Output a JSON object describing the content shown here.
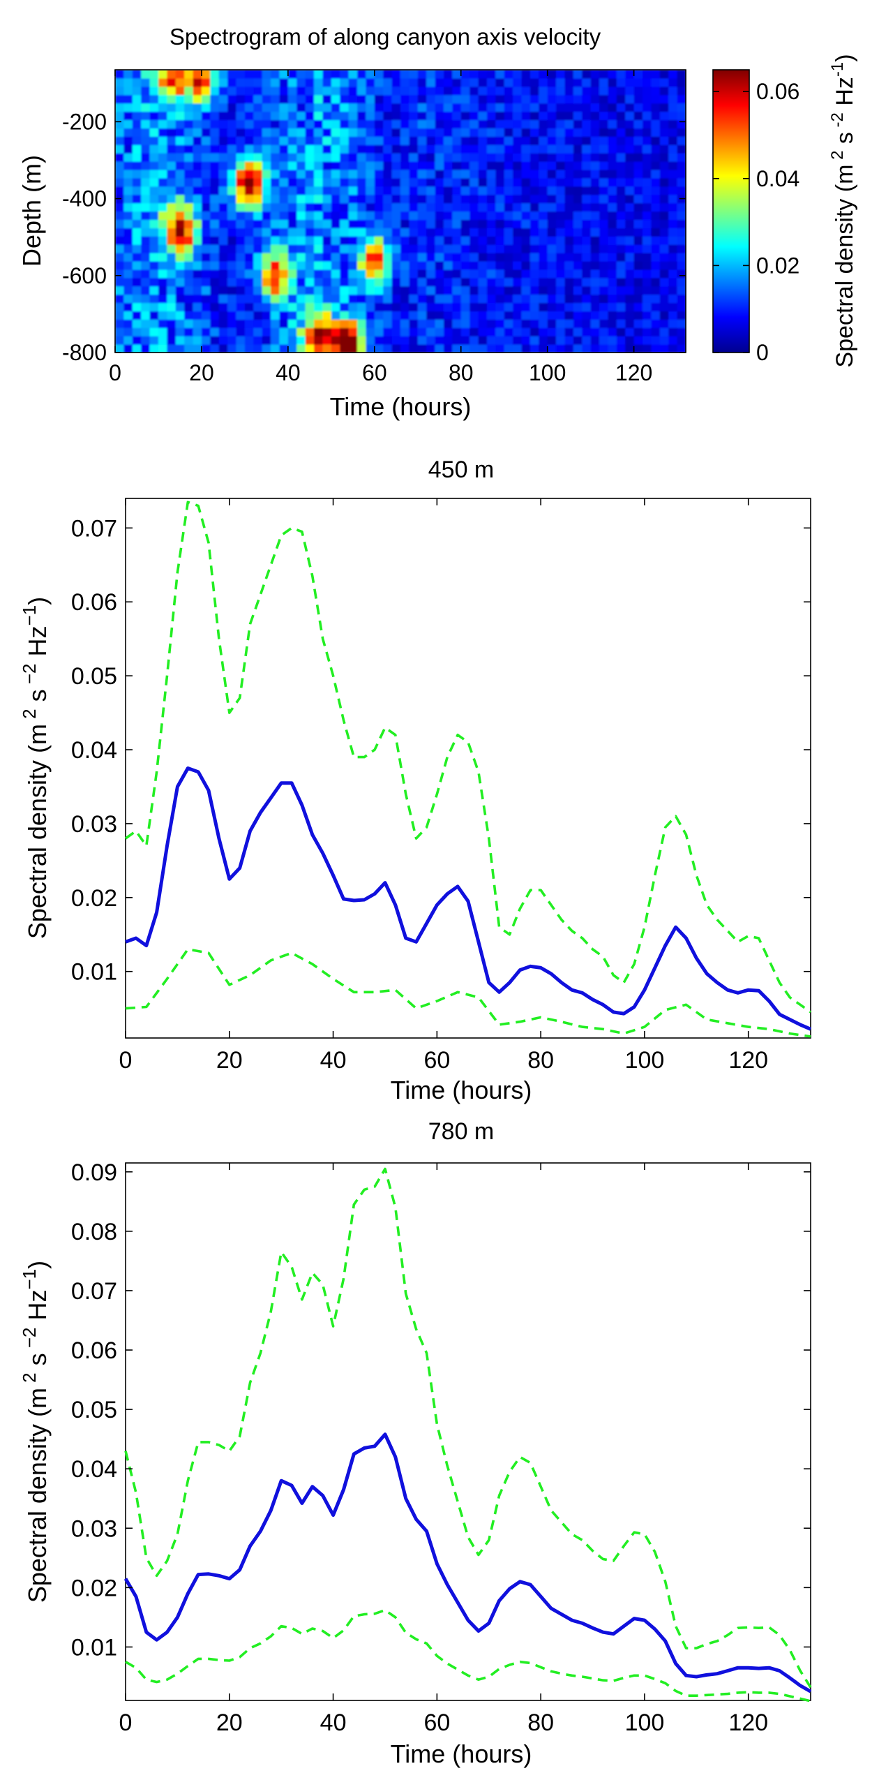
{
  "chart_data": [
    {
      "type": "heatmap",
      "title": "Spectrogram of along canyon axis velocity",
      "xlabel": "Time (hours)",
      "ylabel": "Depth (m)",
      "xlim": [
        0,
        132
      ],
      "ylim": [
        -800,
        -65
      ],
      "xticks": [
        "0",
        "20",
        "40",
        "60",
        "80",
        "100",
        "120"
      ],
      "yticks": [
        "-200",
        "-400",
        "-600",
        "-800"
      ],
      "colorbar": {
        "label": "Spectral density (m 2 s -2 Hz-1)",
        "range": [
          0,
          0.065
        ],
        "ticks": [
          "0",
          "0.02",
          "0.04",
          "0.06"
        ],
        "colormap": "jet"
      },
      "hotspots": [
        {
          "time": 15,
          "depth": -480,
          "value": 0.055
        },
        {
          "time": 31,
          "depth": -360,
          "value": 0.06
        },
        {
          "time": 37,
          "depth": -600,
          "value": 0.045
        },
        {
          "time": 54,
          "depth": -780,
          "value": 0.065
        },
        {
          "time": 47,
          "depth": -760,
          "value": 0.05
        },
        {
          "time": 60,
          "depth": -560,
          "value": 0.045
        },
        {
          "time": 20,
          "depth": -90,
          "value": 0.045
        },
        {
          "time": 13,
          "depth": -90,
          "value": 0.04
        }
      ]
    },
    {
      "type": "line",
      "title": "450 m",
      "xlabel": "Time (hours)",
      "ylabel": "Spectral density (m 2 s -2 Hz-1)",
      "xlim": [
        0,
        132
      ],
      "ylim": [
        0.001,
        0.074
      ],
      "xticks": [
        "0",
        "20",
        "40",
        "60",
        "80",
        "100",
        "120"
      ],
      "yticks": [
        "0.01",
        "0.02",
        "0.03",
        "0.04",
        "0.05",
        "0.06",
        "0.07"
      ],
      "series": [
        {
          "style": "solid",
          "color": "#1010dd",
          "x": [
            0,
            2,
            4,
            6,
            8,
            10,
            12,
            14,
            16,
            18,
            20,
            22,
            24,
            26,
            28,
            30,
            32,
            34,
            36,
            38,
            40,
            42,
            44,
            46,
            48,
            50,
            52,
            54,
            56,
            58,
            60,
            62,
            64,
            66,
            68,
            70,
            72,
            74,
            76,
            78,
            80,
            82,
            84,
            86,
            88,
            90,
            92,
            94,
            96,
            98,
            100,
            102,
            104,
            106,
            108,
            110,
            112,
            114,
            116,
            118,
            120,
            122,
            124,
            126,
            128,
            130,
            132
          ],
          "y": [
            0.014,
            0.0145,
            0.0135,
            0.018,
            0.027,
            0.035,
            0.0375,
            0.037,
            0.0345,
            0.028,
            0.0225,
            0.024,
            0.029,
            0.0315,
            0.0335,
            0.0355,
            0.0355,
            0.0325,
            0.0285,
            0.026,
            0.023,
            0.0198,
            0.0196,
            0.0197,
            0.0205,
            0.022,
            0.019,
            0.0145,
            0.014,
            0.0165,
            0.019,
            0.0205,
            0.0215,
            0.0195,
            0.014,
            0.0085,
            0.0072,
            0.0085,
            0.0102,
            0.0107,
            0.0105,
            0.0097,
            0.0085,
            0.0075,
            0.0071,
            0.0062,
            0.0055,
            0.0045,
            0.0043,
            0.0052,
            0.0075,
            0.0105,
            0.0135,
            0.016,
            0.0145,
            0.0118,
            0.0097,
            0.0085,
            0.0075,
            0.0071,
            0.0075,
            0.0074,
            0.006,
            0.0042,
            0.0035,
            0.0028,
            0.0022
          ]
        },
        {
          "style": "dashed",
          "color": "#22ee22",
          "x": [
            0,
            2,
            4,
            6,
            8,
            10,
            12,
            14,
            16,
            18,
            20,
            22,
            24,
            26,
            28,
            30,
            32,
            34,
            36,
            38,
            40,
            42,
            44,
            46,
            48,
            50,
            52,
            54,
            56,
            58,
            60,
            62,
            64,
            66,
            68,
            70,
            72,
            74,
            76,
            78,
            80,
            82,
            84,
            86,
            88,
            90,
            92,
            94,
            96,
            98,
            100,
            102,
            104,
            106,
            108,
            110,
            112,
            114,
            116,
            118,
            120,
            122,
            124,
            126,
            128,
            130,
            132
          ],
          "y": [
            0.028,
            0.029,
            0.027,
            0.037,
            0.05,
            0.064,
            0.0735,
            0.073,
            0.068,
            0.055,
            0.045,
            0.047,
            0.057,
            0.061,
            0.065,
            0.069,
            0.07,
            0.0695,
            0.0635,
            0.055,
            0.05,
            0.044,
            0.039,
            0.039,
            0.04,
            0.043,
            0.042,
            0.034,
            0.028,
            0.0295,
            0.034,
            0.039,
            0.042,
            0.041,
            0.037,
            0.028,
            0.016,
            0.015,
            0.0185,
            0.021,
            0.021,
            0.019,
            0.017,
            0.0155,
            0.0145,
            0.013,
            0.012,
            0.0095,
            0.0085,
            0.011,
            0.016,
            0.023,
            0.0295,
            0.031,
            0.0285,
            0.023,
            0.019,
            0.017,
            0.0155,
            0.014,
            0.0148,
            0.0145,
            0.0115,
            0.0085,
            0.0065,
            0.0055,
            0.0045
          ]
        },
        {
          "style": "dashed",
          "color": "#22ee22",
          "x": [
            0,
            4,
            8,
            12,
            16,
            20,
            24,
            28,
            32,
            36,
            40,
            44,
            48,
            52,
            56,
            60,
            64,
            68,
            72,
            76,
            80,
            84,
            88,
            92,
            96,
            100,
            104,
            108,
            112,
            116,
            120,
            124,
            128,
            132
          ],
          "y": [
            0.005,
            0.0052,
            0.009,
            0.013,
            0.0125,
            0.0082,
            0.0095,
            0.0115,
            0.0125,
            0.011,
            0.009,
            0.0072,
            0.0072,
            0.0075,
            0.005,
            0.006,
            0.0072,
            0.0065,
            0.0028,
            0.0032,
            0.0038,
            0.0032,
            0.0025,
            0.0022,
            0.0016,
            0.0025,
            0.0048,
            0.0055,
            0.0035,
            0.003,
            0.0025,
            0.0022,
            0.0016,
            0.0012
          ]
        }
      ]
    },
    {
      "type": "line",
      "title": "780 m",
      "xlabel": "Time (hours)",
      "ylabel": "Spectral density (m 2 s -2 Hz-1)",
      "xlim": [
        0,
        132
      ],
      "ylim": [
        0.001,
        0.0915
      ],
      "xticks": [
        "0",
        "20",
        "40",
        "60",
        "80",
        "100",
        "120"
      ],
      "yticks": [
        "0.01",
        "0.02",
        "0.03",
        "0.04",
        "0.05",
        "0.06",
        "0.07",
        "0.08",
        "0.09"
      ],
      "series": [
        {
          "style": "solid",
          "color": "#1010dd",
          "x": [
            0,
            2,
            4,
            6,
            8,
            10,
            12,
            14,
            16,
            18,
            20,
            22,
            24,
            26,
            28,
            30,
            32,
            34,
            36,
            38,
            40,
            42,
            44,
            46,
            48,
            50,
            52,
            54,
            56,
            58,
            60,
            62,
            64,
            66,
            68,
            70,
            72,
            74,
            76,
            78,
            80,
            82,
            84,
            86,
            88,
            90,
            92,
            94,
            96,
            98,
            100,
            102,
            104,
            106,
            108,
            110,
            112,
            114,
            116,
            118,
            120,
            122,
            124,
            126,
            128,
            130,
            132
          ],
          "y": [
            0.0215,
            0.0185,
            0.0125,
            0.0112,
            0.0125,
            0.015,
            0.019,
            0.0222,
            0.0223,
            0.022,
            0.0215,
            0.023,
            0.027,
            0.0295,
            0.033,
            0.038,
            0.0372,
            0.0342,
            0.037,
            0.0355,
            0.0322,
            0.0365,
            0.0425,
            0.0435,
            0.0438,
            0.0458,
            0.042,
            0.035,
            0.0315,
            0.0295,
            0.024,
            0.0205,
            0.0175,
            0.0145,
            0.0127,
            0.014,
            0.0178,
            0.0198,
            0.021,
            0.0205,
            0.0185,
            0.0165,
            0.0155,
            0.0145,
            0.014,
            0.0132,
            0.0125,
            0.0122,
            0.0135,
            0.0148,
            0.0145,
            0.013,
            0.011,
            0.0072,
            0.0052,
            0.005,
            0.0053,
            0.0055,
            0.006,
            0.0065,
            0.0065,
            0.0064,
            0.0065,
            0.006,
            0.0048,
            0.0035,
            0.0025
          ]
        },
        {
          "style": "dashed",
          "color": "#22ee22",
          "x": [
            0,
            2,
            4,
            6,
            8,
            10,
            12,
            14,
            16,
            18,
            20,
            22,
            24,
            26,
            28,
            30,
            32,
            34,
            36,
            38,
            40,
            42,
            44,
            46,
            48,
            50,
            52,
            54,
            56,
            58,
            60,
            62,
            64,
            66,
            68,
            70,
            72,
            74,
            76,
            78,
            80,
            82,
            84,
            86,
            88,
            90,
            92,
            94,
            96,
            98,
            100,
            102,
            104,
            106,
            108,
            110,
            112,
            114,
            116,
            118,
            120,
            122,
            124,
            126,
            128,
            130,
            132
          ],
          "y": [
            0.043,
            0.036,
            0.025,
            0.022,
            0.0245,
            0.029,
            0.038,
            0.0445,
            0.0445,
            0.044,
            0.043,
            0.0455,
            0.0545,
            0.0595,
            0.0665,
            0.0765,
            0.074,
            0.0685,
            0.073,
            0.071,
            0.064,
            0.072,
            0.0845,
            0.087,
            0.0875,
            0.0905,
            0.084,
            0.0695,
            0.0635,
            0.0595,
            0.0475,
            0.0405,
            0.0345,
            0.0285,
            0.0255,
            0.028,
            0.0355,
            0.0395,
            0.042,
            0.041,
            0.037,
            0.033,
            0.031,
            0.029,
            0.028,
            0.0262,
            0.0248,
            0.0245,
            0.027,
            0.0293,
            0.029,
            0.026,
            0.021,
            0.0135,
            0.0098,
            0.0098,
            0.0105,
            0.011,
            0.012,
            0.0132,
            0.0133,
            0.0132,
            0.0133,
            0.012,
            0.0095,
            0.006,
            0.0032
          ]
        },
        {
          "style": "dashed",
          "color": "#22ee22",
          "x": [
            0,
            2,
            4,
            6,
            8,
            10,
            12,
            14,
            16,
            18,
            20,
            22,
            24,
            26,
            28,
            30,
            32,
            34,
            36,
            38,
            40,
            42,
            44,
            46,
            48,
            50,
            52,
            54,
            56,
            58,
            60,
            62,
            64,
            66,
            68,
            70,
            72,
            74,
            76,
            78,
            80,
            82,
            84,
            86,
            88,
            90,
            92,
            94,
            96,
            98,
            100,
            102,
            104,
            106,
            108,
            110,
            112,
            114,
            116,
            118,
            120,
            122,
            124,
            126,
            128,
            130,
            132
          ],
          "y": [
            0.0075,
            0.0065,
            0.0045,
            0.0041,
            0.0045,
            0.0055,
            0.0068,
            0.008,
            0.008,
            0.0078,
            0.0077,
            0.0083,
            0.0098,
            0.0106,
            0.0118,
            0.0135,
            0.0132,
            0.0122,
            0.0131,
            0.0127,
            0.0115,
            0.0128,
            0.0152,
            0.0155,
            0.0156,
            0.0162,
            0.015,
            0.0124,
            0.0113,
            0.0106,
            0.0085,
            0.0072,
            0.0062,
            0.0052,
            0.0045,
            0.005,
            0.0063,
            0.007,
            0.0075,
            0.0073,
            0.0066,
            0.0059,
            0.0055,
            0.0052,
            0.005,
            0.0047,
            0.0044,
            0.0043,
            0.0048,
            0.0052,
            0.0052,
            0.0046,
            0.0039,
            0.0026,
            0.0018,
            0.0018,
            0.0019,
            0.002,
            0.0021,
            0.0023,
            0.0024,
            0.0023,
            0.0023,
            0.0021,
            0.0017,
            0.0013,
            0.0009
          ]
        }
      ]
    }
  ]
}
